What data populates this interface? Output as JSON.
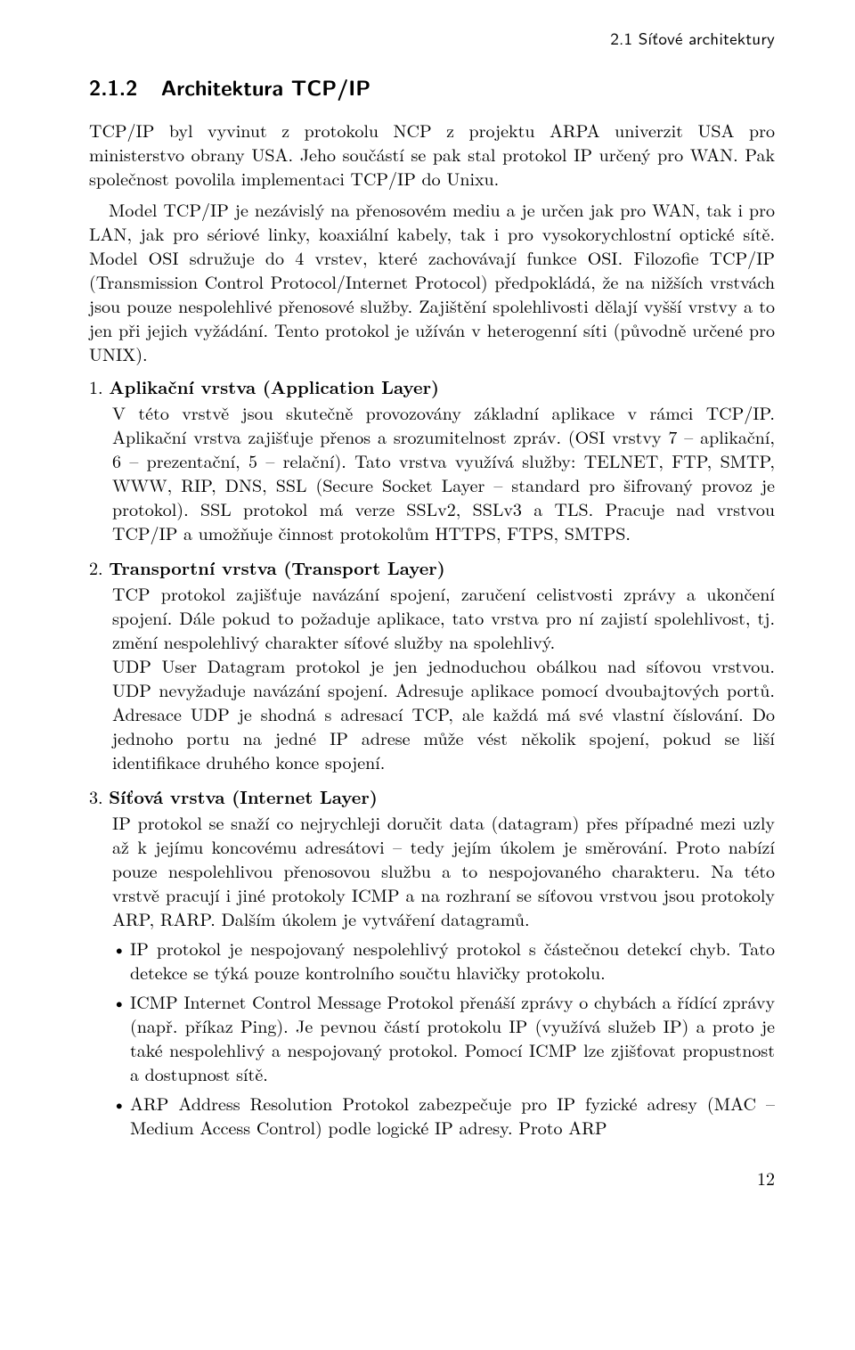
{
  "running_head": "2.1  Síťové architektury",
  "section_number": "2.1.2",
  "section_title": "Architektura TCP/IP",
  "para1": "TCP/IP byl vyvinut z protokolu NCP z projektu ARPA univerzit USA pro ministerstvo obrany USA. Jeho součástí se pak stal protokol IP určený pro WAN. Pak společnost povolila implementaci TCP/IP do Unixu.",
  "para2": "Model TCP/IP je nezávislý na přenosovém mediu a je určen jak pro WAN, tak i pro LAN, jak pro sériové linky, koaxiální kabely, tak i pro vysokorychlostní optické sítě. Model OSI sdružuje do 4 vrstev, které zachovávají funkce OSI. Filozofie TCP/IP (Transmission Control Protocol/Internet Protocol) předpokládá, že na nižších vrstvách jsou pouze nespolehlivé přenosové služby. Zajištění spolehlivosti dělají vyšší vrstvy a to jen při jejich vyžádání. Tento protokol je užíván v heterogenní síti (původně určené pro UNIX).",
  "layers": [
    {
      "num": "1.",
      "title": "Aplikační vrstva (Application Layer)",
      "body": "V této vrstvě jsou skutečně provozovány základní aplikace v rámci TCP/IP. Aplikační vrstva zajišťuje přenos a srozumitelnost zpráv. (OSI vrstvy 7 – aplikační, 6 – prezentační, 5 – relační). Tato vrstva využívá služby: TELNET, FTP, SMTP, WWW, RIP, DNS, SSL (Secure Socket Layer – standard pro šifrovaný provoz je protokol). SSL protokol má verze SSLv2, SSLv3 a TLS. Pracuje nad vrstvou TCP/IP a umožňuje činnost protokolům HTTPS, FTPS, SMTPS."
    },
    {
      "num": "2.",
      "title": "Transportní vrstva (Transport Layer)",
      "body": "TCP protokol zajišťuje navázání spojení, zaručení celistvosti zprávy a ukončení spojení. Dále pokud to požaduje aplikace, tato vrstva pro ní zajistí spolehlivost, tj. změní nespolehlivý charakter síťové služby na spolehlivý.",
      "body2": "UDP User Datagram protokol je jen jednoduchou obálkou nad síťovou vrstvou. UDP nevyžaduje navázání spojení. Adresuje aplikace pomocí dvoubajtových portů. Adresace UDP je shodná s adresací TCP, ale každá má své vlastní číslování. Do jednoho portu na jedné IP adrese může vést několik spojení, pokud se liší identifikace druhého konce spojení."
    },
    {
      "num": "3.",
      "title": "Síťová vrstva (Internet Layer)",
      "body": "IP protokol se snaží co nejrychleji doručit data (datagram) přes případné mezi uzly až k jejímu koncovému adresátovi – tedy jejím úkolem je směrování. Proto nabízí pouze nespolehlivou přenosovou službu a to nespojovaného charakteru. Na této vrstvě pracují i jiné protokoly ICMP a na rozhraní se síťovou vrstvou jsou protokoly ARP, RARP. Dalším úkolem je vytváření datagramů.",
      "bullets": [
        "IP protokol je nespojovaný nespolehlivý protokol s částečnou detekcí chyb. Tato detekce se týká pouze kontrolního součtu hlavičky protokolu.",
        "ICMP Internet Control Message Protokol přenáší zprávy o chybách a řídící zprávy (např. příkaz Ping). Je pevnou částí protokolu IP (využívá služeb IP) a proto je také nespolehlivý a nespojovaný protokol. Pomocí ICMP lze zjišťovat propustnost a dostupnost sítě.",
        "ARP Address Resolution Protokol zabezpečuje pro IP fyzické adresy (MAC – Medium Access Control) podle logické IP adresy. Proto ARP"
      ]
    }
  ],
  "page_number": "12",
  "colors": {
    "text": "#000000",
    "background": "#ffffff"
  },
  "typography": {
    "body_font": "Latin Modern Roman / Times",
    "body_size_pt": 12,
    "heading_font": "Latin Modern Sans / Helvetica",
    "heading_size_pt": 14,
    "heading_weight": "bold",
    "running_head_font": "Latin Modern Sans / Helvetica",
    "running_head_size_pt": 11
  }
}
